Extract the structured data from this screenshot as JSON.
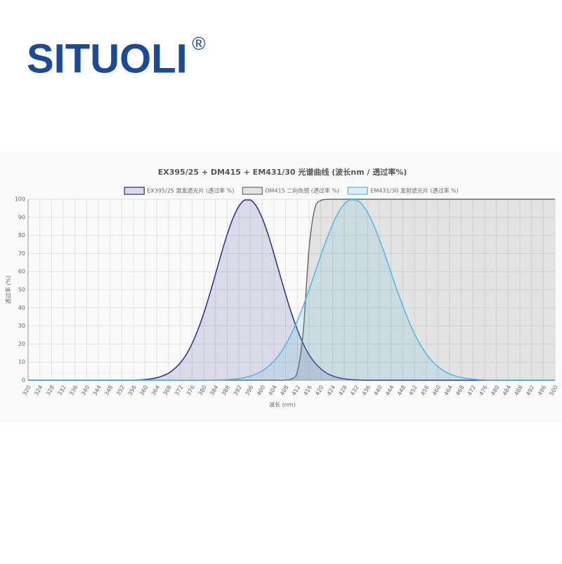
{
  "brand": {
    "name": "SITUOLI",
    "mark": "®"
  },
  "chart_data": {
    "type": "area",
    "title": "EX395/25 + DM415 + EM431/30 光谱曲线 (波长nm / 透过率%)",
    "x_label": "波长 (nm)",
    "y_label": "透过率 (%)",
    "x": [
      320,
      322,
      324,
      326,
      328,
      330,
      332,
      334,
      336,
      338,
      340,
      342,
      344,
      346,
      348,
      350,
      352,
      354,
      356,
      358,
      360,
      362,
      364,
      366,
      368,
      370,
      372,
      374,
      376,
      378,
      380,
      382,
      384,
      386,
      388,
      390,
      392,
      394,
      396,
      398,
      400,
      402,
      404,
      406,
      408,
      410,
      412,
      414,
      416,
      418,
      420,
      422,
      424,
      426,
      428,
      430,
      432,
      434,
      436,
      438,
      440,
      442,
      444,
      446,
      448,
      450,
      452,
      454,
      456,
      458,
      460,
      462,
      464,
      466,
      468,
      470,
      472,
      474,
      476,
      478,
      480,
      482,
      484,
      486,
      488,
      490,
      492,
      494,
      496,
      498,
      500
    ],
    "series": [
      {
        "name": "EX395/25 激发滤光片 (透过率 %)",
        "color": "#2b2b8c",
        "fill": "rgba(43,43,140,0.15)",
        "values": [
          0,
          0,
          0,
          0,
          0,
          0,
          0,
          0,
          0,
          0,
          0,
          0,
          0,
          0,
          0,
          0,
          0,
          0,
          0.1,
          0.2,
          0.4,
          0.8,
          1.4,
          2.4,
          3.9,
          6.3,
          9.6,
          14.1,
          20.2,
          27.8,
          36.9,
          47.3,
          58.5,
          69.8,
          80.5,
          89.5,
          96.1,
          99.6,
          99.6,
          96.1,
          89.5,
          80.5,
          69.8,
          58.5,
          47.3,
          36.9,
          27.8,
          20.2,
          14.1,
          9.6,
          6.3,
          3.9,
          2.4,
          1.4,
          0.8,
          0.4,
          0.2,
          0.1,
          0,
          0,
          0,
          0,
          0,
          0,
          0,
          0,
          0,
          0,
          0,
          0,
          0,
          0,
          0,
          0,
          0,
          0,
          0,
          0,
          0,
          0,
          0,
          0,
          0,
          0,
          0,
          0,
          0,
          0,
          0,
          0,
          0
        ]
      },
      {
        "name": "DM415 二向色镜 (透过率 %)",
        "color": "#6b6b6b",
        "fill": "rgba(120,120,120,0.18)",
        "values": [
          0,
          0,
          0,
          0,
          0,
          0,
          0,
          0,
          0,
          0,
          0,
          0,
          0,
          0,
          0,
          0,
          0,
          0,
          0,
          0,
          0,
          0,
          0,
          0,
          0,
          0,
          0,
          0,
          0,
          0,
          0,
          0,
          0,
          0,
          0,
          0,
          0,
          0,
          0,
          0,
          0,
          0,
          0,
          0,
          0.1,
          0.7,
          4.7,
          26.9,
          73.1,
          95.3,
          99.3,
          99.9,
          100,
          100,
          100,
          100,
          100,
          100,
          100,
          100,
          100,
          100,
          100,
          100,
          100,
          100,
          100,
          100,
          100,
          100,
          100,
          100,
          100,
          100,
          100,
          100,
          100,
          100,
          100,
          100,
          100,
          100,
          100,
          100,
          100,
          100,
          100,
          100,
          100,
          100,
          100
        ]
      },
      {
        "name": "EM431/30 发射滤光片 (透过率 %)",
        "color": "#4bb9e2",
        "fill": "rgba(75,185,226,0.16)",
        "values": [
          0,
          0,
          0,
          0,
          0,
          0,
          0,
          0,
          0,
          0,
          0,
          0,
          0,
          0,
          0,
          0,
          0,
          0,
          0,
          0,
          0,
          0,
          0,
          0,
          0,
          0,
          0,
          0,
          0,
          0,
          0,
          0.1,
          0.1,
          0.2,
          0.3,
          0.6,
          0.9,
          1.5,
          2.3,
          3.5,
          5.2,
          7.5,
          10.6,
          14.6,
          19.6,
          25.7,
          32.9,
          41.1,
          50.0,
          59.4,
          68.9,
          77.9,
          86.0,
          92.6,
          97.3,
          99.7,
          99.7,
          97.3,
          92.6,
          86.0,
          77.9,
          68.9,
          59.4,
          50.0,
          41.1,
          32.9,
          25.7,
          19.6,
          14.6,
          10.6,
          7.5,
          5.2,
          3.5,
          2.3,
          1.5,
          0.9,
          0.6,
          0.3,
          0.2,
          0.1,
          0.1,
          0,
          0,
          0,
          0,
          0,
          0,
          0,
          0,
          0,
          0
        ]
      }
    ],
    "xlim": [
      320,
      500
    ],
    "xticks": [
      320,
      324,
      328,
      332,
      336,
      340,
      344,
      348,
      352,
      356,
      360,
      364,
      368,
      372,
      376,
      380,
      384,
      388,
      392,
      396,
      400,
      404,
      408,
      412,
      416,
      420,
      424,
      428,
      432,
      436,
      440,
      444,
      448,
      452,
      456,
      460,
      464,
      468,
      472,
      476,
      480,
      484,
      488,
      492,
      496,
      500
    ],
    "ylim": [
      0,
      100
    ],
    "yticks": [
      0,
      10,
      20,
      30,
      40,
      50,
      60,
      70,
      80,
      90,
      100
    ],
    "grid": true,
    "legend": "top"
  }
}
